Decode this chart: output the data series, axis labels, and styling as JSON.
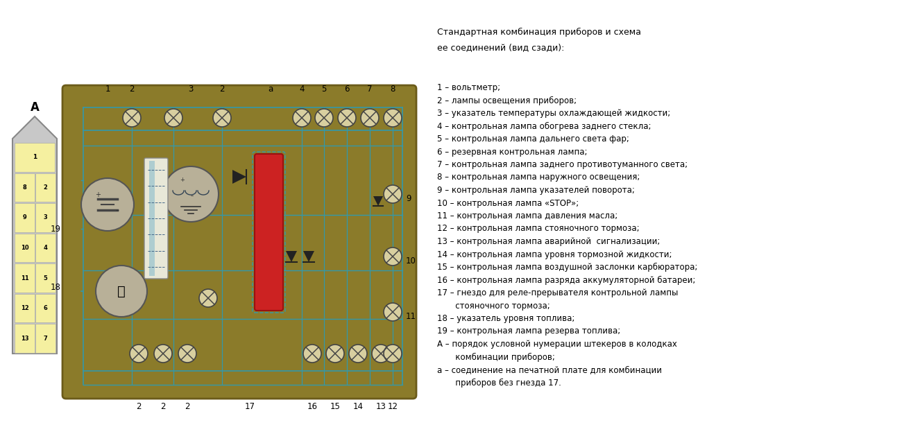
{
  "bg_color": "#ffffff",
  "board_color": "#8B7B2A",
  "board_edge": "#6B5B1A",
  "trace_color": "#3399aa",
  "title_text": "Стандартная комбинация приборов и схема\nее соединений (вид сзади):",
  "legend": [
    "1 – вольтметр;",
    "2 – лампы освещения приборов;",
    "3 – указатель температуры охлаждающей жидкости;",
    "4 – контрольная лампа обогрева заднего стекла;",
    "5 – контрольная лампа дальнего света фар;",
    "6 – резервная контрольная лампа;",
    "7 – контрольная лампа заднего противотуманного света;",
    "8 – контрольная лампа наружного освещения;",
    "9 – контрольная лампа указателей поворота;",
    "10 – контрольная лампа «STOP»;",
    "11 – контрольная лампа давления масла;",
    "12 – контрольная лампа стояночного тормоза;",
    "13 – контрольная лампа аварийной  сигнализации;",
    "14 – контрольная лампа уровня тормозной жидкости;",
    "15 – контрольная лампа воздушной заслонки карбюратора;",
    "16 – контрольная лампа разряда аккумуляторной батареи;",
    "17 – гнездо для реле-прерывателя контрольной лампы",
    "       стояночного тормоза;",
    "18 – указатель уровня топлива;",
    "19 – контрольная лампа резерва топлива;",
    "А – порядок условной нумерации штекеров в колодках",
    "       комбинации приборов;",
    "а – соединение на печатной плате для комбинации",
    "       приборов без гнезда 17."
  ],
  "figure_size": [
    13.26,
    6.39
  ],
  "dpi": 100
}
